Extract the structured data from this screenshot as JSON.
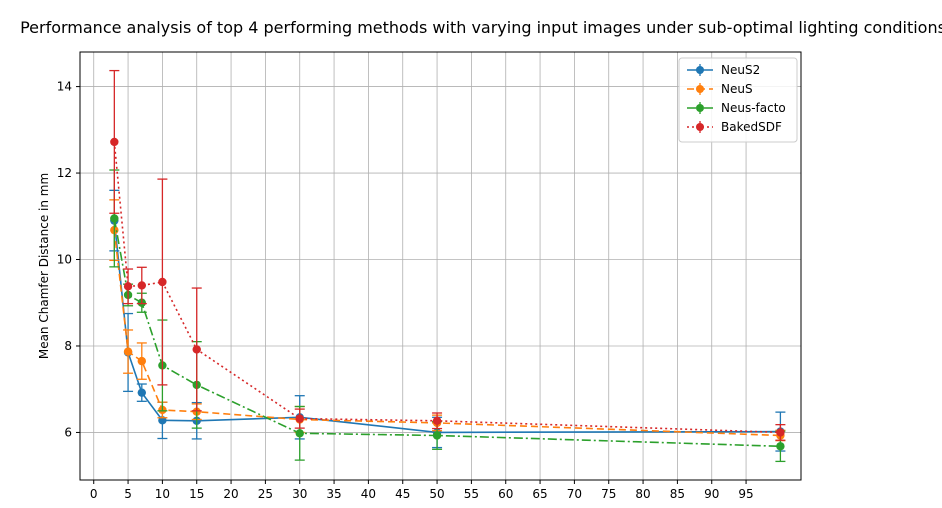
{
  "chart_data": {
    "type": "line",
    "title": "Performance analysis of top 4 performing methods with varying input images under sub-optimal lighting conditions",
    "xlabel": "",
    "ylabel": "Mean Chamfer Distance in mm",
    "xlim": [
      -2,
      103
    ],
    "ylim": [
      4.9,
      14.8
    ],
    "x_ticks": [
      0,
      5,
      10,
      15,
      20,
      25,
      30,
      35,
      40,
      45,
      50,
      55,
      60,
      65,
      70,
      75,
      80,
      85,
      90,
      95
    ],
    "y_ticks": [
      6,
      8,
      10,
      12,
      14
    ],
    "grid": true,
    "legend_position": "top-right",
    "series": [
      {
        "name": "NeuS2",
        "color": "#1f77b4",
        "dash": "solid",
        "x": [
          3,
          5,
          7,
          10,
          15,
          30,
          50,
          100
        ],
        "y": [
          10.9,
          7.85,
          6.92,
          6.28,
          6.27,
          6.35,
          6.0,
          6.02
        ],
        "err": [
          0.7,
          0.9,
          0.2,
          0.42,
          0.42,
          0.5,
          0.35,
          0.45
        ]
      },
      {
        "name": "NeuS",
        "color": "#ff7f0e",
        "dash": "dashed",
        "x": [
          3,
          5,
          7,
          10,
          15,
          30,
          50,
          100
        ],
        "y": [
          10.68,
          7.87,
          7.65,
          6.52,
          6.48,
          6.3,
          6.22,
          5.93
        ],
        "err": [
          0.7,
          0.5,
          0.42,
          0.18,
          0.18,
          0.3,
          0.18,
          0.12
        ]
      },
      {
        "name": "Neus-facto",
        "color": "#2ca02c",
        "dash": "dashdot",
        "x": [
          3,
          5,
          7,
          10,
          15,
          30,
          50,
          100
        ],
        "y": [
          10.95,
          9.18,
          9.0,
          7.55,
          7.1,
          5.98,
          5.93,
          5.68
        ],
        "err": [
          1.12,
          0.25,
          0.22,
          1.05,
          1.0,
          0.62,
          0.32,
          0.35
        ]
      },
      {
        "name": "BakedSDF",
        "color": "#d62728",
        "dash": "dotted",
        "x": [
          3,
          5,
          7,
          10,
          15,
          30,
          50,
          100
        ],
        "y": [
          12.72,
          9.38,
          9.4,
          9.48,
          7.92,
          6.32,
          6.27,
          6.0
        ],
        "err": [
          1.65,
          0.4,
          0.42,
          2.38,
          1.42,
          0.22,
          0.18,
          0.18
        ]
      }
    ]
  }
}
